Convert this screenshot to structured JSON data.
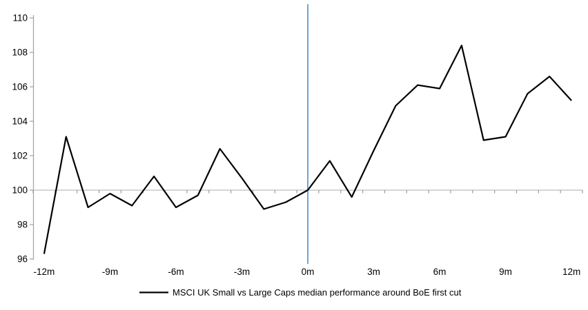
{
  "chart_data": {
    "type": "line",
    "title": "",
    "x": [
      -12,
      -11,
      -10,
      -9,
      -8,
      -7,
      -6,
      -5,
      -4,
      -3,
      -2,
      -1,
      0,
      1,
      2,
      3,
      4,
      5,
      6,
      7,
      8,
      9,
      10,
      11,
      12
    ],
    "series": [
      {
        "name": "MSCI UK Small vs Large Caps median performance around BoE first cut",
        "color": "#000000",
        "values": [
          96.3,
          103.1,
          99.0,
          99.8,
          99.1,
          100.8,
          99.0,
          99.7,
          102.4,
          100.7,
          98.9,
          99.3,
          100.0,
          101.7,
          99.6,
          102.3,
          104.9,
          106.1,
          105.9,
          108.4,
          102.9,
          103.1,
          105.6,
          106.6,
          105.2
        ]
      }
    ],
    "x_tick_labels": [
      "-12m",
      "-9m",
      "-6m",
      "-3m",
      "0m",
      "3m",
      "6m",
      "9m",
      "12m"
    ],
    "y_ticks": [
      96,
      98,
      100,
      102,
      104,
      106,
      108,
      110
    ],
    "ylim": [
      96,
      110
    ],
    "baseline_value": 100,
    "event_line_x": 0,
    "legend_position": "bottom",
    "grid": "off",
    "colors": {
      "event_line": "#5b9bd5",
      "baseline_line": "#bcbcbc",
      "axis_line": "#a6a6a6",
      "tick": "#9a9a9a",
      "label_text": "#000000"
    }
  }
}
